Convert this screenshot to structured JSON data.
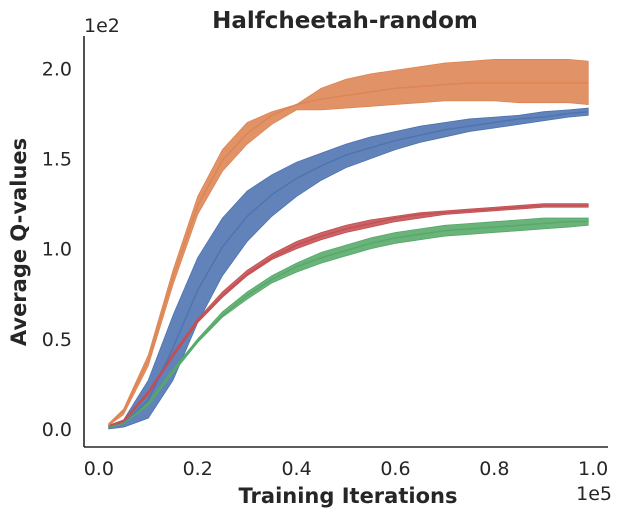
{
  "chart_data": {
    "type": "line",
    "title": "Halfcheetah-random",
    "xlabel": "Training Iterations",
    "ylabel": "Average Q-values",
    "x_exponent_label": "1e5",
    "y_exponent_label": "1e2",
    "xlim": [
      -0.03,
      1.03
    ],
    "ylim": [
      -0.1,
      2.18
    ],
    "xticks": [
      0.0,
      0.2,
      0.4,
      0.6,
      0.8,
      1.0
    ],
    "xtick_labels": [
      "0.0",
      "0.2",
      "0.4",
      "0.6",
      "0.8",
      "1.0"
    ],
    "yticks": [
      0.0,
      0.5,
      1.0,
      1.5,
      2.0
    ],
    "ytick_labels": [
      "0.0",
      "0.5",
      "1.0",
      "1.5",
      "2.0"
    ],
    "grid": false,
    "series": [
      {
        "name": "orange",
        "color": "#dd8452",
        "x": [
          0.02,
          0.05,
          0.1,
          0.15,
          0.2,
          0.25,
          0.3,
          0.35,
          0.4,
          0.45,
          0.5,
          0.55,
          0.6,
          0.65,
          0.7,
          0.75,
          0.8,
          0.85,
          0.9,
          0.95,
          0.99
        ],
        "mean": [
          0.02,
          0.1,
          0.38,
          0.84,
          1.24,
          1.49,
          1.64,
          1.74,
          1.8,
          1.83,
          1.85,
          1.87,
          1.89,
          1.9,
          1.91,
          1.92,
          1.92,
          1.92,
          1.92,
          1.92,
          1.92
        ],
        "lower": [
          0.02,
          0.08,
          0.35,
          0.8,
          1.19,
          1.43,
          1.58,
          1.69,
          1.77,
          1.77,
          1.78,
          1.79,
          1.8,
          1.81,
          1.82,
          1.82,
          1.82,
          1.81,
          1.81,
          1.81,
          1.8
        ],
        "upper": [
          0.03,
          0.11,
          0.41,
          0.88,
          1.29,
          1.55,
          1.7,
          1.76,
          1.8,
          1.89,
          1.94,
          1.97,
          1.99,
          2.01,
          2.03,
          2.04,
          2.05,
          2.05,
          2.05,
          2.05,
          2.04
        ]
      },
      {
        "name": "blue",
        "color": "#4c72b0",
        "x": [
          0.02,
          0.05,
          0.1,
          0.15,
          0.2,
          0.25,
          0.3,
          0.35,
          0.4,
          0.45,
          0.5,
          0.55,
          0.6,
          0.65,
          0.7,
          0.75,
          0.8,
          0.85,
          0.9,
          0.95,
          0.99
        ],
        "mean": [
          0.01,
          0.03,
          0.16,
          0.45,
          0.77,
          1.01,
          1.18,
          1.3,
          1.39,
          1.46,
          1.52,
          1.56,
          1.6,
          1.63,
          1.66,
          1.68,
          1.7,
          1.72,
          1.73,
          1.75,
          1.76
        ],
        "lower": [
          0.0,
          0.01,
          0.06,
          0.27,
          0.59,
          0.85,
          1.04,
          1.18,
          1.29,
          1.38,
          1.45,
          1.5,
          1.55,
          1.59,
          1.62,
          1.65,
          1.67,
          1.69,
          1.71,
          1.73,
          1.74
        ],
        "upper": [
          0.02,
          0.05,
          0.27,
          0.63,
          0.95,
          1.17,
          1.32,
          1.41,
          1.48,
          1.53,
          1.58,
          1.62,
          1.65,
          1.68,
          1.7,
          1.72,
          1.73,
          1.74,
          1.76,
          1.77,
          1.78
        ]
      },
      {
        "name": "red",
        "color": "#c44e52",
        "x": [
          0.02,
          0.05,
          0.1,
          0.15,
          0.2,
          0.25,
          0.3,
          0.35,
          0.4,
          0.45,
          0.5,
          0.55,
          0.6,
          0.65,
          0.7,
          0.75,
          0.8,
          0.85,
          0.9,
          0.95,
          0.99
        ],
        "mean": [
          0.01,
          0.04,
          0.2,
          0.41,
          0.6,
          0.74,
          0.86,
          0.95,
          1.02,
          1.07,
          1.11,
          1.14,
          1.17,
          1.19,
          1.2,
          1.21,
          1.22,
          1.23,
          1.24,
          1.24,
          1.24
        ],
        "lower": [
          0.01,
          0.04,
          0.19,
          0.4,
          0.59,
          0.73,
          0.85,
          0.94,
          1.0,
          1.05,
          1.09,
          1.12,
          1.15,
          1.17,
          1.19,
          1.2,
          1.21,
          1.22,
          1.23,
          1.23,
          1.23
        ],
        "upper": [
          0.02,
          0.05,
          0.21,
          0.42,
          0.61,
          0.76,
          0.88,
          0.97,
          1.04,
          1.09,
          1.13,
          1.16,
          1.18,
          1.2,
          1.21,
          1.22,
          1.23,
          1.24,
          1.25,
          1.25,
          1.25
        ]
      },
      {
        "name": "green",
        "color": "#55a868",
        "x": [
          0.02,
          0.05,
          0.1,
          0.15,
          0.2,
          0.25,
          0.3,
          0.35,
          0.4,
          0.45,
          0.5,
          0.55,
          0.6,
          0.65,
          0.7,
          0.75,
          0.8,
          0.85,
          0.9,
          0.95,
          0.99
        ],
        "mean": [
          0.01,
          0.03,
          0.14,
          0.32,
          0.49,
          0.63,
          0.74,
          0.83,
          0.9,
          0.95,
          0.99,
          1.03,
          1.06,
          1.08,
          1.1,
          1.11,
          1.12,
          1.13,
          1.14,
          1.15,
          1.15
        ],
        "lower": [
          0.01,
          0.03,
          0.13,
          0.31,
          0.48,
          0.62,
          0.72,
          0.81,
          0.87,
          0.92,
          0.96,
          1.0,
          1.03,
          1.05,
          1.07,
          1.08,
          1.09,
          1.1,
          1.11,
          1.12,
          1.13
        ],
        "upper": [
          0.01,
          0.04,
          0.15,
          0.33,
          0.5,
          0.65,
          0.76,
          0.85,
          0.92,
          0.98,
          1.02,
          1.06,
          1.09,
          1.11,
          1.13,
          1.14,
          1.15,
          1.16,
          1.17,
          1.17,
          1.17
        ]
      }
    ]
  }
}
